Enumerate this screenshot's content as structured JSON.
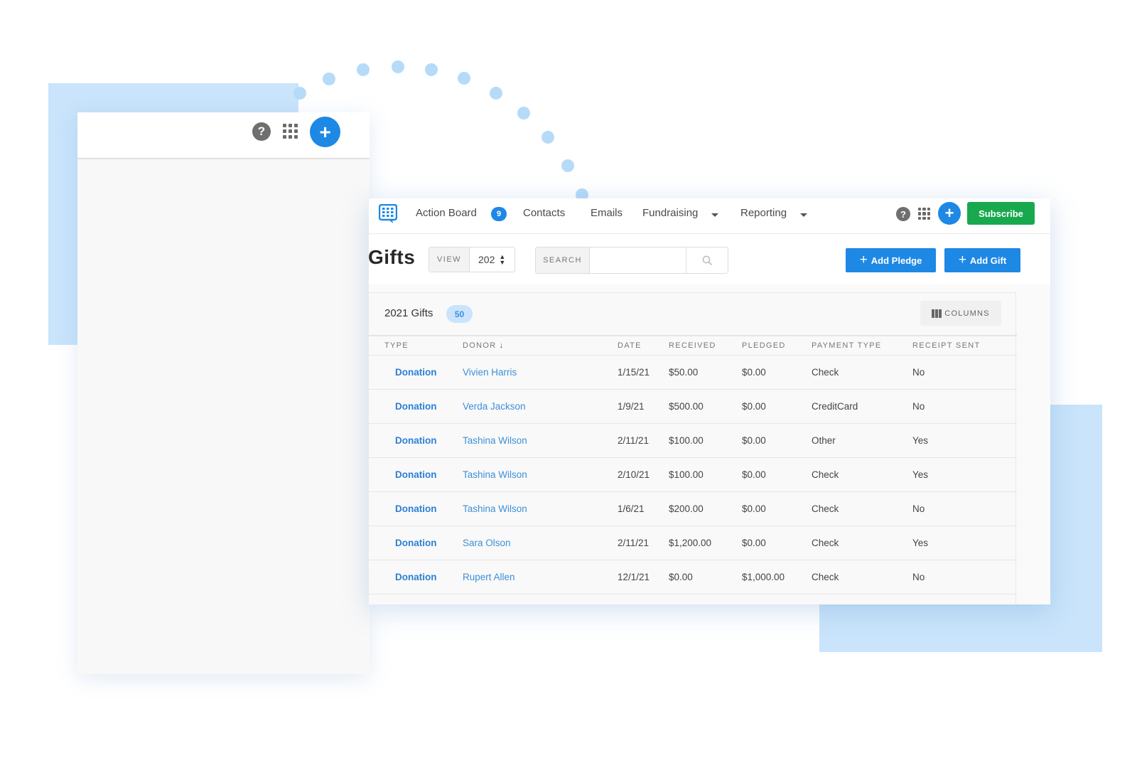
{
  "back_panel": {
    "help_icon": "help-icon",
    "apps_icon": "grid-icon",
    "add_icon": "plus-icon"
  },
  "nav": {
    "logo_icon": "app-logo-icon",
    "items": [
      {
        "label": "Action Board",
        "badge": "9"
      },
      {
        "label": "Contacts"
      },
      {
        "label": "Emails"
      },
      {
        "label": "Fundraising"
      },
      {
        "label": "Reporting"
      }
    ],
    "subscribe_label": "Subscribe"
  },
  "toolbar": {
    "title": "Gifts",
    "view_label": "VIEW",
    "view_value": "202",
    "search_label": "SEARCH",
    "search_placeholder": "",
    "add_pledge_label": "Add Pledge",
    "add_gift_label": "Add Gift"
  },
  "table_card": {
    "title": "2021 Gifts",
    "count": "50",
    "columns_label": "COLUMNS",
    "headers": [
      "TYPE",
      "DONOR",
      "DATE",
      "RECEIVED",
      "PLEDGED",
      "PAYMENT TYPE",
      "RECEIPT SENT"
    ],
    "sort_indicator": "↓",
    "rows": [
      {
        "type": "Donation",
        "donor": "Vivien Harris",
        "date": "1/15/21",
        "received": "$50.00",
        "pledged": "$0.00",
        "payment_type": "Check",
        "receipt_sent": "No"
      },
      {
        "type": "Donation",
        "donor": "Verda Jackson",
        "date": "1/9/21",
        "received": "$500.00",
        "pledged": "$0.00",
        "payment_type": "CreditCard",
        "receipt_sent": "No"
      },
      {
        "type": "Donation",
        "donor": "Tashina Wilson",
        "date": "2/11/21",
        "received": "$100.00",
        "pledged": "$0.00",
        "payment_type": "Other",
        "receipt_sent": "Yes"
      },
      {
        "type": "Donation",
        "donor": "Tashina Wilson",
        "date": "2/10/21",
        "received": "$100.00",
        "pledged": "$0.00",
        "payment_type": "Check",
        "receipt_sent": "Yes"
      },
      {
        "type": "Donation",
        "donor": "Tashina Wilson",
        "date": "1/6/21",
        "received": "$200.00",
        "pledged": "$0.00",
        "payment_type": "Check",
        "receipt_sent": "No"
      },
      {
        "type": "Donation",
        "donor": "Sara Olson",
        "date": "2/11/21",
        "received": "$1,200.00",
        "pledged": "$0.00",
        "payment_type": "Check",
        "receipt_sent": "Yes"
      },
      {
        "type": "Donation",
        "donor": "Rupert Allen",
        "date": "12/1/21",
        "received": "$0.00",
        "pledged": "$1,000.00",
        "payment_type": "Check",
        "receipt_sent": "No"
      }
    ]
  },
  "colors": {
    "accent_blue": "#1e88e5",
    "subscribe_green": "#18a94e",
    "decor_blue": "#c9e4fb",
    "link_blue": "#3d8fd8"
  }
}
